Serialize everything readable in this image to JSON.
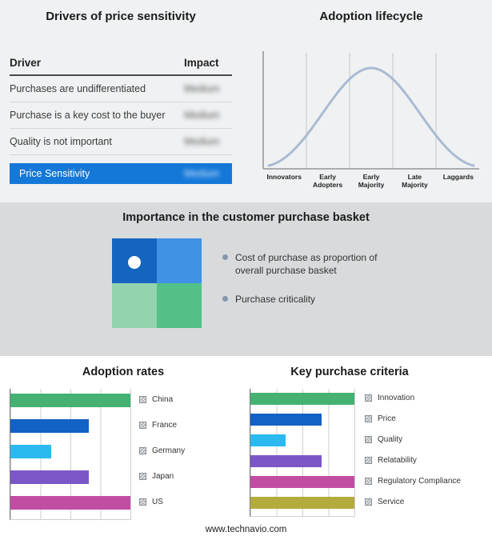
{
  "colors": {
    "highlight_blue": "#1478d8",
    "curve": "#a9bbd3",
    "bullet": "#8496ad",
    "quadrant_tl": "#1565c0",
    "quadrant_tr": "#3f92e4",
    "quadrant_bl": "#93d4ae",
    "quadrant_br": "#52c087"
  },
  "drivers_panel": {
    "title": "Drivers of price sensitivity",
    "columns": {
      "driver": "Driver",
      "impact": "Impact"
    },
    "rows": [
      {
        "driver": "Purchases are undifferentiated",
        "impact": "Medium"
      },
      {
        "driver": "Purchase is a key cost to the buyer",
        "impact": "Medium"
      },
      {
        "driver": "Quality is not important",
        "impact": "Medium"
      }
    ],
    "highlight": {
      "driver": "Price Sensitivity",
      "impact": "Medium"
    }
  },
  "basket_panel": {
    "title": "Importance in the customer purchase basket",
    "bullets": [
      "Cost of purchase as proportion of overall purchase basket",
      "Purchase criticality"
    ]
  },
  "footer": "www.technavio.com",
  "chart_data": [
    {
      "id": "adoption-lifecycle",
      "type": "line",
      "title": "Adoption lifecycle",
      "shape": "bell curve over five equal stage segments, no numeric axis labels",
      "categories": [
        "Innovators",
        "Early Adopters",
        "Early Majority",
        "Late Majority",
        "Laggards"
      ],
      "legend_position": "none",
      "grid": "vertical stage dividers"
    },
    {
      "id": "adoption-rates",
      "type": "bar",
      "orientation": "horizontal",
      "title": "Adoption rates",
      "categories": [
        "China",
        "France",
        "Germany",
        "Japan",
        "US"
      ],
      "values": [
        4,
        2.6,
        1.35,
        2.6,
        4
      ],
      "colors": [
        "#45b173",
        "#1261c4",
        "#2cb9f0",
        "#7b57c6",
        "#c14da3"
      ],
      "xlim": [
        0,
        4
      ],
      "xlabel": "",
      "ylabel": "",
      "axis_tick_labels_visible": false,
      "grid": "vertical gridlines at 4 intervals",
      "legend_position": "right"
    },
    {
      "id": "key-purchase-criteria",
      "type": "bar",
      "orientation": "horizontal",
      "title": "Key purchase criteria",
      "categories": [
        "Innovation",
        "Price",
        "Quality",
        "Relatability",
        "Regulatory Compliance",
        "Service"
      ],
      "values": [
        4,
        2.75,
        1.35,
        2.75,
        4,
        4
      ],
      "colors": [
        "#45b173",
        "#1261c4",
        "#2cb9f0",
        "#7b57c6",
        "#c14da3",
        "#b3ab3e"
      ],
      "xlim": [
        0,
        4
      ],
      "xlabel": "",
      "ylabel": "",
      "axis_tick_labels_visible": false,
      "grid": "vertical gridlines at 4 intervals",
      "legend_position": "right"
    }
  ]
}
